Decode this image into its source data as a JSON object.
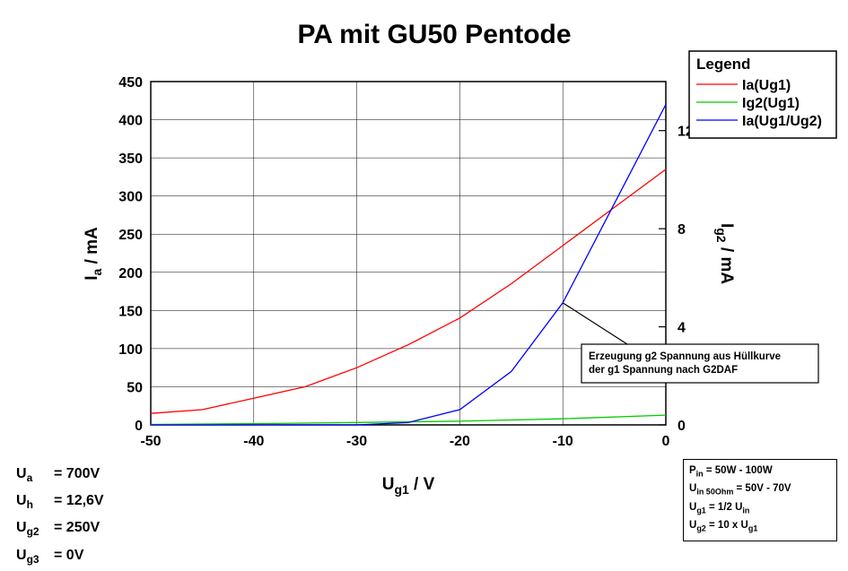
{
  "chart_data": {
    "type": "line",
    "title": "PA mit GU50 Pentode",
    "xlabel": "Ug1 / V",
    "xlabel_main": "U",
    "xlabel_sub": "g1",
    "xlabel_unit": " / V",
    "ylabel_main": "I",
    "ylabel_sub": "a",
    "ylabel_unit": " / mA",
    "y2label_main": "I",
    "y2label_sub": "g2",
    "y2label_unit": " / mA",
    "xlim": [
      -50,
      0
    ],
    "ylim": [
      0,
      450
    ],
    "y2lim": [
      0,
      14
    ],
    "xticks": [
      -50,
      -40,
      -30,
      -20,
      -10,
      0
    ],
    "xtick_labels": [
      "-50",
      "-40",
      "-30",
      "-20",
      "-10",
      "0"
    ],
    "yticks": [
      0,
      50,
      100,
      150,
      200,
      250,
      300,
      350,
      400,
      450
    ],
    "ytick_labels": [
      "0",
      "50",
      "100",
      "150",
      "200",
      "250",
      "300",
      "350",
      "400",
      "450"
    ],
    "y2ticks": [
      0,
      4,
      8,
      12
    ],
    "y2tick_labels": [
      "0",
      "4",
      "8",
      "12"
    ],
    "grid": true,
    "legend_title": "Legend",
    "legend_position": "top-right",
    "series": [
      {
        "name": "Ia(Ug1)",
        "axis": "left",
        "color": "#ff0000",
        "x": [
          -50,
          -45,
          -40,
          -35,
          -30,
          -25,
          -20,
          -15,
          -10,
          -5,
          0
        ],
        "y": [
          15,
          20,
          35,
          50,
          75,
          105,
          140,
          185,
          235,
          285,
          335
        ]
      },
      {
        "name": "Ig2(Ug1)",
        "axis": "right",
        "color": "#00cc00",
        "x": [
          -50,
          -40,
          -30,
          -20,
          -10,
          0
        ],
        "y": [
          0.02,
          0.05,
          0.1,
          0.15,
          0.25,
          0.4
        ]
      },
      {
        "name": "Ia(Ug1/Ug2)",
        "axis": "left",
        "color": "#0000ff",
        "x": [
          -50,
          -40,
          -30,
          -25,
          -20,
          -15,
          -10,
          -5,
          0
        ],
        "y": [
          0,
          0,
          0,
          3,
          20,
          70,
          160,
          290,
          420
        ]
      }
    ],
    "annotation": {
      "lines": [
        "Erzeugung g2 Spannung aus Hüllkurve",
        "der g1 Spannung nach G2DAF"
      ],
      "target_x": -10,
      "target_y": 160
    }
  },
  "params": [
    {
      "main": "U",
      "sub": "a",
      "rhs": "= 700V"
    },
    {
      "main": "U",
      "sub": "h",
      "rhs": "= 12,6V"
    },
    {
      "main": "U",
      "sub": "g2",
      "rhs": "= 250V"
    },
    {
      "main": "U",
      "sub": "g3",
      "rhs": "= 0V"
    }
  ],
  "info": [
    {
      "main": "P",
      "sub": "in",
      "rhs": " = 50W - 100W"
    },
    {
      "main": "U",
      "sub": "in 50Ohm",
      "rhs": " = 50V - 70V"
    },
    {
      "main": "U",
      "sub": "g1",
      "rhs": " = 1/2 U",
      "sub2": "in"
    },
    {
      "main": "U",
      "sub": "g2",
      "rhs": " = 10 x U",
      "sub2": "g1"
    }
  ]
}
